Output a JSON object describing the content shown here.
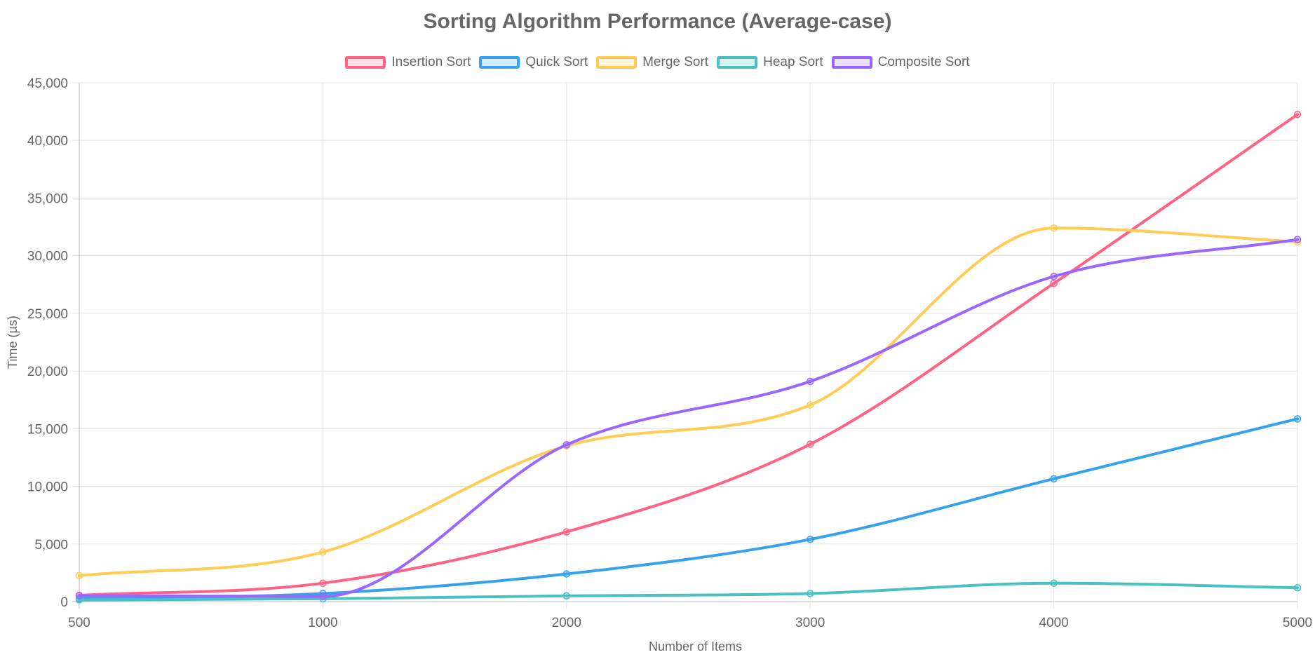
{
  "chart_data": {
    "type": "line",
    "title": "Sorting Algorithm Performance (Average-case)",
    "xlabel": "Number of Items",
    "ylabel": "Time (µs)",
    "categories": [
      "500",
      "1000",
      "2000",
      "3000",
      "4000",
      "5000"
    ],
    "ylim": [
      0,
      45000
    ],
    "yticks": [
      "0",
      "5,000",
      "10,000",
      "15,000",
      "20,000",
      "25,000",
      "30,000",
      "35,000",
      "40,000",
      "45,000"
    ],
    "grid": true,
    "legend_position": "top",
    "series": [
      {
        "name": "Insertion Sort",
        "color": "#ff6384",
        "values": [
          550,
          1600,
          6050,
          13650,
          27600,
          42250
        ]
      },
      {
        "name": "Quick Sort",
        "color": "#36a2eb",
        "values": [
          250,
          700,
          2400,
          5400,
          10650,
          15850
        ]
      },
      {
        "name": "Merge Sort",
        "color": "#ffcd56",
        "values": [
          2250,
          4300,
          13500,
          17050,
          32400,
          31200
        ]
      },
      {
        "name": "Heap Sort",
        "color": "#4bc0c0",
        "values": [
          150,
          250,
          500,
          700,
          1600,
          1200
        ]
      },
      {
        "name": "Composite Sort",
        "color": "#9966ff",
        "values": [
          500,
          450,
          13600,
          19100,
          28200,
          31400
        ]
      }
    ]
  }
}
